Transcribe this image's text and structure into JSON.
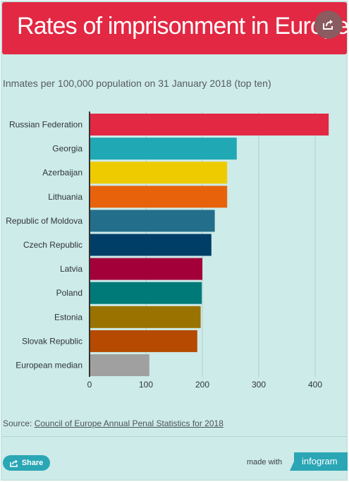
{
  "header": {
    "title": "Rates of imprisonment in Europe"
  },
  "subtitle": "Inmates per 100,000 population on 31 January 2018 (top ten)",
  "source": {
    "prefix": "Source: ",
    "link_text": "Council of Europe Annual Penal Statistics for 2018"
  },
  "footer": {
    "share_label": "Share",
    "made_with": "made with",
    "brand": "infogram"
  },
  "colors": {
    "header_bg": "#e22843",
    "panel_bg": "#cdebe8",
    "share_button": "#2aa6b5",
    "infogram_badge": "#2aa6b5"
  },
  "icons": {
    "header_share": "share-icon",
    "button_share": "share-icon"
  },
  "chart_data": {
    "type": "bar",
    "orientation": "horizontal",
    "categories": [
      "Russian Federation",
      "Georgia",
      "Azerbaijan",
      "Lithuania",
      "Republic of Moldova",
      "Czech Republic",
      "Latvia",
      "Poland",
      "Estonia",
      "Slovak Republic",
      "European median"
    ],
    "values": [
      424,
      261,
      244,
      244,
      222,
      216,
      200,
      199,
      197,
      191,
      106
    ],
    "colors": [
      "#e22843",
      "#20a8b4",
      "#eecb00",
      "#e8620c",
      "#236e8a",
      "#003e67",
      "#a3003a",
      "#007a78",
      "#997200",
      "#b54a00",
      "#a0a0a0"
    ],
    "xlim": [
      0,
      450
    ],
    "xticks": [
      0,
      100,
      200,
      300,
      400
    ],
    "grid": true,
    "legend": "none"
  }
}
